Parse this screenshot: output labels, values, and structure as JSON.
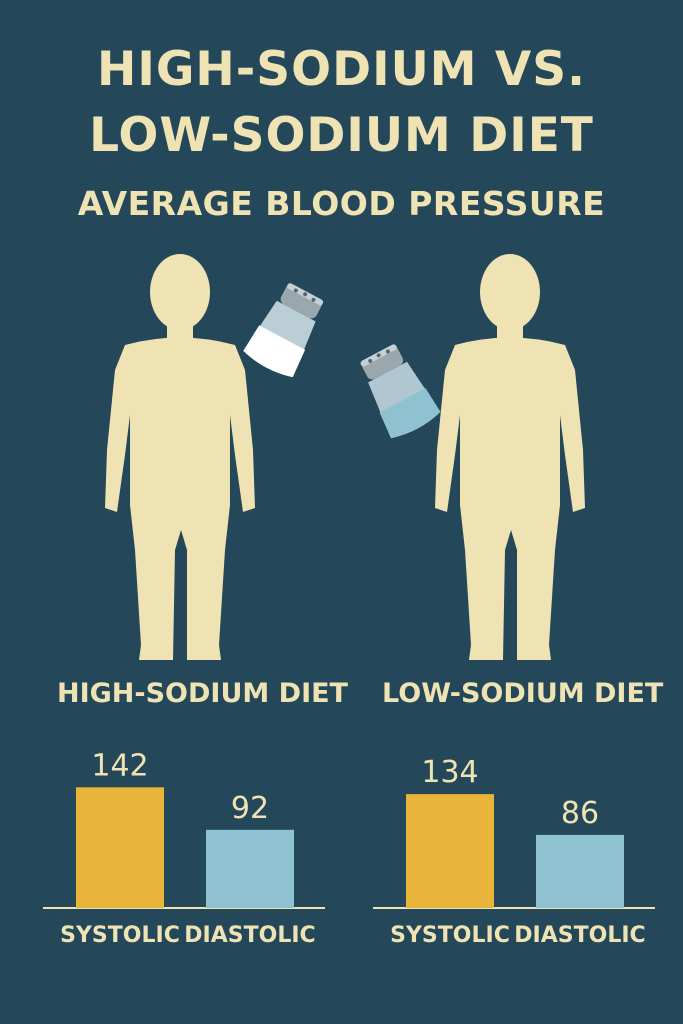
{
  "title_line1": "HIGH-SODIUM VS.",
  "title_line2": "LOW-SODIUM DIET",
  "subtitle": "AVERAGE BLOOD PRESSURE",
  "groups": [
    {
      "label": "HIGH-SODIUM DIET",
      "shaker": "salt-shaker-icon-white"
    },
    {
      "label": "LOW-SODIUM DIET",
      "shaker": "salt-shaker-icon-blue"
    }
  ],
  "colors": {
    "background": "#24485a",
    "figure": "#efe3b4",
    "systolic": "#e8b43a",
    "diastolic": "#8fc2d0",
    "text": "#efe3b4"
  },
  "chart_data": [
    {
      "type": "bar",
      "group": "HIGH-SODIUM DIET",
      "categories": [
        "SYSTOLIC",
        "DIASTOLIC"
      ],
      "values": [
        142,
        92
      ],
      "data_labels": [
        "142",
        "92"
      ]
    },
    {
      "type": "bar",
      "group": "LOW-SODIUM DIET",
      "categories": [
        "SYSTOLIC",
        "DIASTOLIC"
      ],
      "values": [
        134,
        86
      ],
      "data_labels": [
        "134",
        "86"
      ]
    }
  ]
}
